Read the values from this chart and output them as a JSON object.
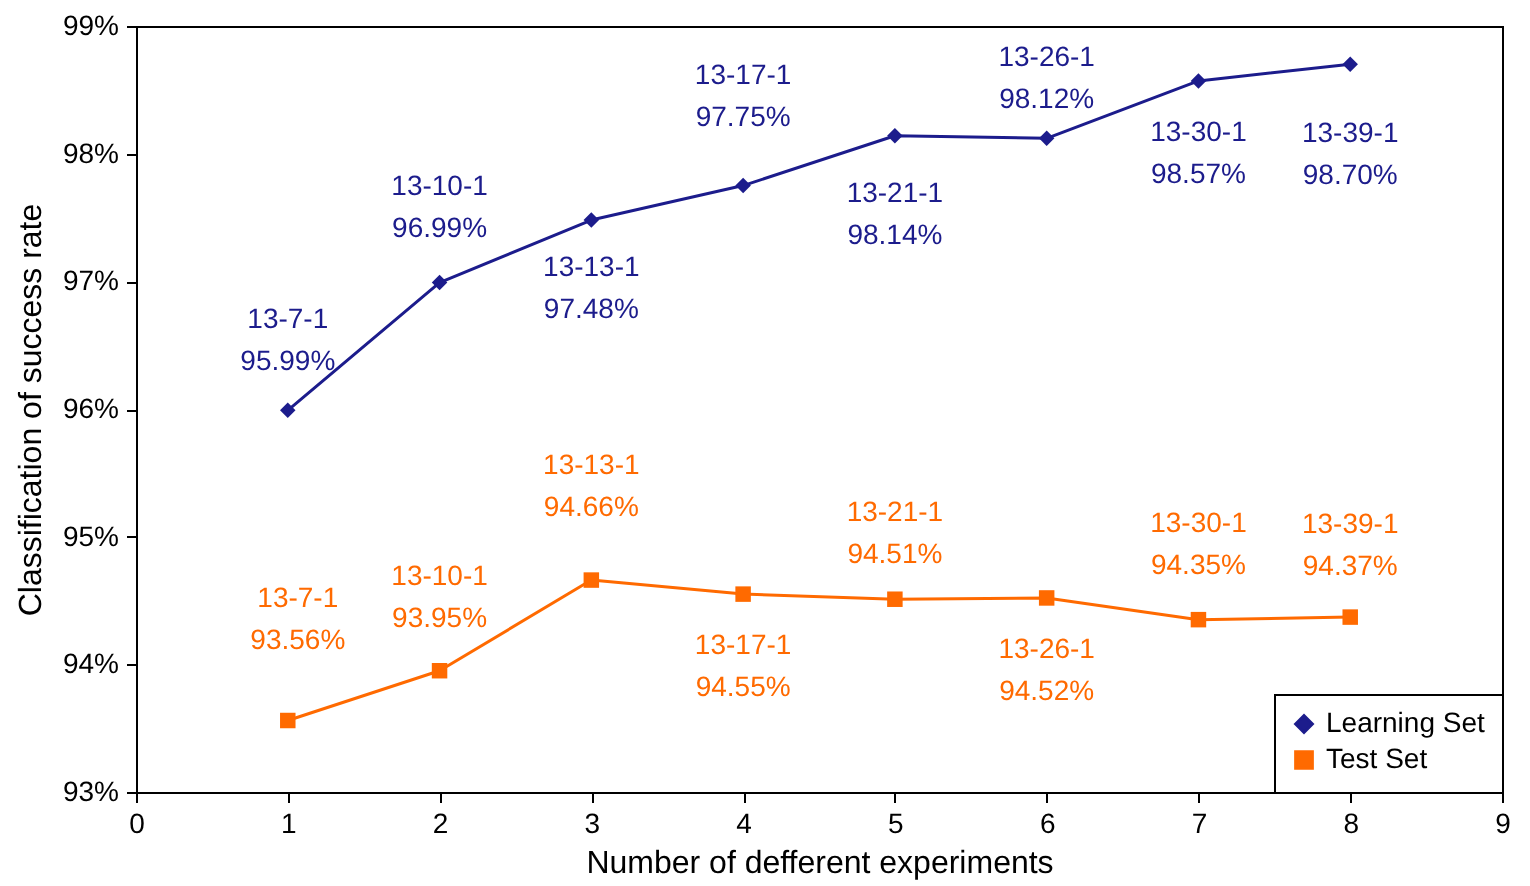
{
  "chart_data": {
    "type": "line",
    "xlabel": "Number of defferent experiments",
    "ylabel": "Classification of success rate",
    "x": [
      1,
      2,
      3,
      4,
      5,
      6,
      7,
      8
    ],
    "series": [
      {
        "name": "Learning Set",
        "color": "#1c1c8c",
        "marker": "diamond",
        "values": [
          95.99,
          96.99,
          97.48,
          97.75,
          98.14,
          98.12,
          98.57,
          98.7
        ]
      },
      {
        "name": "Test Set",
        "color": "#ff6a00",
        "marker": "square",
        "values": [
          93.56,
          93.95,
          94.66,
          94.55,
          94.51,
          94.52,
          94.35,
          94.37
        ]
      }
    ],
    "xlim": [
      0,
      9
    ],
    "xticks": [
      0,
      1,
      2,
      3,
      4,
      5,
      6,
      7,
      8,
      9
    ],
    "ylim": [
      93,
      99
    ],
    "yticks": [
      {
        "value": 93,
        "label": "93%"
      },
      {
        "value": 94,
        "label": "94%"
      },
      {
        "value": 95,
        "label": "95%"
      },
      {
        "value": 96,
        "label": "96%"
      },
      {
        "value": 97,
        "label": "97%"
      },
      {
        "value": 98,
        "label": "98%"
      },
      {
        "value": 99,
        "label": "99%"
      }
    ],
    "annotations": [
      {
        "text": "13-7-1\n95.99%",
        "x": 1,
        "y": 95.99
      },
      {
        "text": "13-10-1\n96.99%",
        "x": 2,
        "y": 96.99
      },
      {
        "text": "13-13-1\n97.48%",
        "x": 3,
        "y": 97.48
      },
      {
        "text": "13-17-1\n97.75%",
        "x": 4,
        "y": 97.75
      },
      {
        "text": "13-21-1\n98.14%",
        "x": 5,
        "y": 98.14
      },
      {
        "text": "13-26-1\n98.12%",
        "x": 6,
        "y": 98.12
      },
      {
        "text": "13-30-1\n98.57%",
        "x": 7,
        "y": 98.57
      },
      {
        "text": "13-39-1\n98.70%",
        "x": 8,
        "y": 98.7
      },
      {
        "text": "13-7-1\n93.56%",
        "x": 1,
        "y": 93.56
      },
      {
        "text": "13-10-1\n93.95%",
        "x": 2,
        "y": 93.95
      },
      {
        "text": "13-13-1\n94.66%",
        "x": 3,
        "y": 94.66
      },
      {
        "text": "13-17-1\n94.55%",
        "x": 4,
        "y": 94.55
      },
      {
        "text": "13-21-1\n94.51%",
        "x": 5,
        "y": 94.51
      },
      {
        "text": "13-26-1\n94.52%",
        "x": 6,
        "y": 94.52
      },
      {
        "text": "13-30-1\n94.35%",
        "x": 7,
        "y": 94.35
      },
      {
        "text": "13-39-1\n94.37%",
        "x": 8,
        "y": 94.37
      }
    ],
    "grid": false,
    "legend": "bottom right",
    "line_style": "solid"
  }
}
